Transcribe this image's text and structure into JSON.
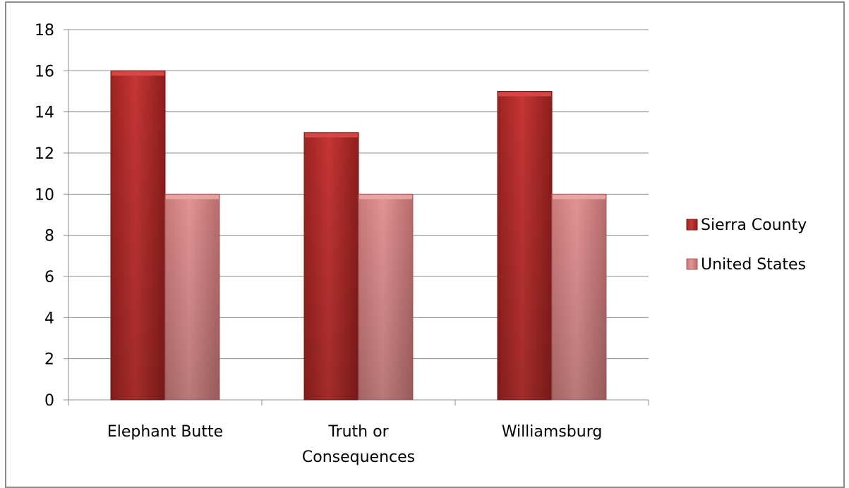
{
  "chart_data": {
    "type": "bar",
    "categories": [
      "Elephant Butte",
      "Truth or Consequences",
      "Williamsburg"
    ],
    "category_label_lines": [
      [
        "Elephant Butte"
      ],
      [
        "Truth or",
        "Consequences"
      ],
      [
        "Williamsburg"
      ]
    ],
    "series": [
      {
        "name": "Sierra County",
        "values": [
          16,
          13,
          15
        ],
        "color": "#c0302f"
      },
      {
        "name": "United States",
        "values": [
          10,
          10,
          10
        ],
        "color": "#d98b8b"
      }
    ],
    "ylim": [
      0,
      18
    ],
    "yticks": [
      0,
      2,
      4,
      6,
      8,
      10,
      12,
      14,
      16,
      18
    ],
    "title": "",
    "xlabel": "",
    "ylabel": "",
    "grid": true,
    "legend_position": "right"
  }
}
